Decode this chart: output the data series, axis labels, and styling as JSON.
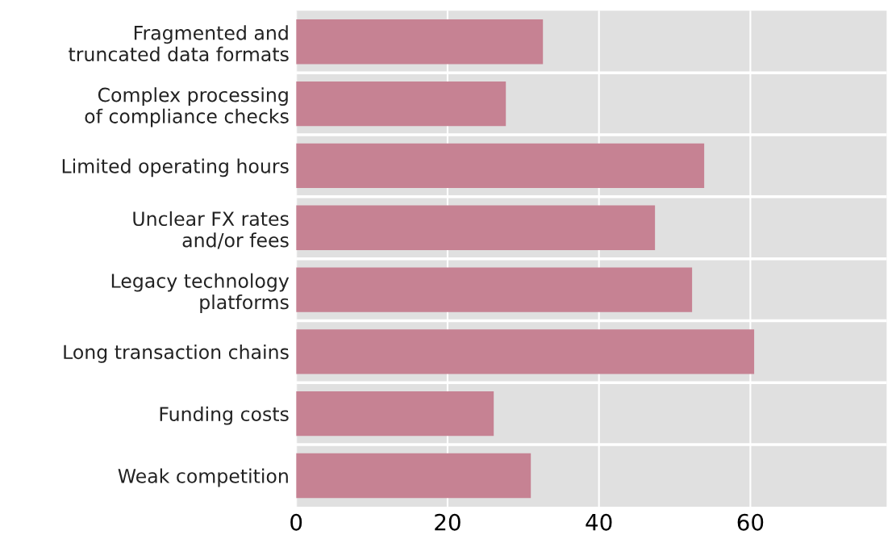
{
  "chart_data": {
    "type": "bar",
    "orientation": "horizontal",
    "categories": [
      "Fragmented and\ntruncated data formats",
      "Complex processing\nof compliance checks",
      "Limited operating hours",
      "Unclear FX rates\nand/or fees",
      "Legacy technology\nplatforms",
      "Long transaction chains",
      "Funding costs",
      "Weak competition"
    ],
    "values": [
      32.6,
      27.7,
      53.9,
      47.4,
      52.3,
      60.5,
      26.1,
      31.0
    ],
    "color": "#c68293",
    "xlim": [
      0,
      78
    ],
    "xticks": [
      0,
      20,
      40,
      60
    ],
    "grid": true
  }
}
